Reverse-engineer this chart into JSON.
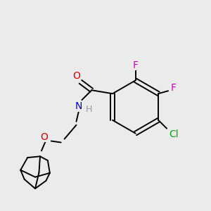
{
  "background_color": "#ebebeb",
  "figsize": [
    3.0,
    3.0
  ],
  "dpi": 100,
  "label_colors": {
    "O": "#dd0000",
    "N": "#0000cc",
    "F": "#cc00cc",
    "Cl": "#00aa00",
    "H": "#888888",
    "C": "#000000"
  },
  "bond_lw": 1.4,
  "font_size": 9
}
